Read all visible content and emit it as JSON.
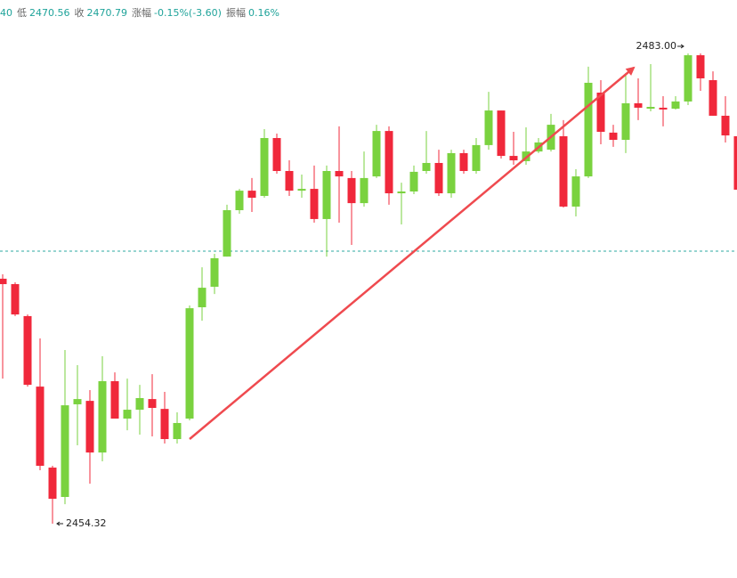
{
  "header": {
    "lead": "40",
    "items": [
      {
        "label": "低",
        "value": "2470.56"
      },
      {
        "label": "收",
        "value": "2470.79"
      },
      {
        "label": "涨幅",
        "value": "-0.15%(-3.60)"
      },
      {
        "label": "振幅",
        "value": "0.16%"
      }
    ]
  },
  "chart_data": {
    "type": "candlestick",
    "up_color": "#7ad23f",
    "down_color": "#f0283b",
    "reference_line": 2470.94,
    "reference_color": "#2ea8a0",
    "annotations": [
      {
        "text": "2483.00",
        "value": 2483.0,
        "candle": 55
      },
      {
        "text": "2454.32",
        "value": 2454.32,
        "candle": 4
      }
    ],
    "candles": [
      [
        2469.26,
        2469.53,
        2463.17,
        2468.93
      ],
      [
        2468.93,
        2469.04,
        2466.98,
        2467.08
      ],
      [
        2466.98,
        2467.08,
        2462.68,
        2462.79
      ],
      [
        2462.68,
        2465.62,
        2457.58,
        2457.85
      ],
      [
        2457.74,
        2457.85,
        2454.32,
        2455.84
      ],
      [
        2455.95,
        2464.91,
        2455.51,
        2461.54
      ],
      [
        2461.6,
        2463.99,
        2459.1,
        2461.92
      ],
      [
        2461.81,
        2462.47,
        2456.76,
        2458.66
      ],
      [
        2458.66,
        2464.53,
        2458.12,
        2463.01
      ],
      [
        2463.01,
        2463.55,
        2460.73,
        2460.73
      ],
      [
        2460.73,
        2463.17,
        2460.02,
        2461.27
      ],
      [
        2461.27,
        2462.79,
        2459.75,
        2461.98
      ],
      [
        2461.92,
        2463.44,
        2459.64,
        2461.38
      ],
      [
        2461.32,
        2462.36,
        2459.21,
        2459.48
      ],
      [
        2459.48,
        2461.11,
        2459.21,
        2460.46
      ],
      [
        2460.73,
        2467.63,
        2460.62,
        2467.46
      ],
      [
        2467.52,
        2469.96,
        2466.7,
        2468.71
      ],
      [
        2468.77,
        2470.78,
        2468.33,
        2470.51
      ],
      [
        2470.61,
        2473.77,
        2470.61,
        2473.44
      ],
      [
        2473.44,
        2474.74,
        2473.22,
        2474.63
      ],
      [
        2474.63,
        2475.4,
        2473.33,
        2474.2
      ],
      [
        2474.31,
        2478.38,
        2474.2,
        2477.84
      ],
      [
        2477.84,
        2478.11,
        2475.67,
        2475.83
      ],
      [
        2475.83,
        2476.48,
        2474.31,
        2474.63
      ],
      [
        2474.63,
        2475.61,
        2474.2,
        2474.74
      ],
      [
        2474.74,
        2476.16,
        2472.68,
        2472.9
      ],
      [
        2472.9,
        2476.16,
        2470.61,
        2475.83
      ],
      [
        2475.83,
        2478.55,
        2472.68,
        2475.5
      ],
      [
        2475.4,
        2475.83,
        2471.32,
        2473.87
      ],
      [
        2473.87,
        2477.02,
        2473.66,
        2475.4
      ],
      [
        2475.5,
        2478.65,
        2475.4,
        2478.27
      ],
      [
        2478.27,
        2478.55,
        2473.77,
        2474.47
      ],
      [
        2474.47,
        2475.12,
        2472.57,
        2474.58
      ],
      [
        2474.58,
        2476.16,
        2474.42,
        2475.78
      ],
      [
        2475.83,
        2478.27,
        2475.67,
        2476.32
      ],
      [
        2476.32,
        2477.13,
        2474.31,
        2474.47
      ],
      [
        2474.47,
        2477.13,
        2474.2,
        2476.92
      ],
      [
        2476.92,
        2477.13,
        2475.67,
        2475.83
      ],
      [
        2475.83,
        2477.84,
        2475.67,
        2477.41
      ],
      [
        2477.41,
        2480.66,
        2477.13,
        2479.52
      ],
      [
        2479.52,
        2479.52,
        2476.59,
        2476.75
      ],
      [
        2476.75,
        2478.22,
        2476.21,
        2476.48
      ],
      [
        2476.43,
        2478.49,
        2476.21,
        2477.02
      ],
      [
        2477.02,
        2477.84,
        2476.92,
        2477.57
      ],
      [
        2477.13,
        2479.31,
        2477.02,
        2478.65
      ],
      [
        2477.95,
        2478.93,
        2473.6,
        2473.66
      ],
      [
        2473.66,
        2475.94,
        2473.06,
        2475.5
      ],
      [
        2475.5,
        2482.19,
        2475.4,
        2481.21
      ],
      [
        2480.61,
        2481.37,
        2477.46,
        2478.22
      ],
      [
        2478.17,
        2478.65,
        2477.3,
        2477.73
      ],
      [
        2477.73,
        2481.8,
        2476.92,
        2479.96
      ],
      [
        2479.96,
        2481.48,
        2478.93,
        2479.69
      ],
      [
        2479.63,
        2482.35,
        2479.47,
        2479.74
      ],
      [
        2479.69,
        2480.39,
        2478.55,
        2479.58
      ],
      [
        2479.63,
        2480.39,
        2479.58,
        2480.07
      ],
      [
        2480.07,
        2483.0,
        2479.85,
        2482.89
      ],
      [
        2482.89,
        2483.0,
        2480.72,
        2481.48
      ],
      [
        2481.37,
        2481.91,
        2479.2,
        2479.2
      ],
      [
        2479.2,
        2480.39,
        2477.57,
        2478.0
      ],
      [
        2477.95,
        2478.11,
        2474.69,
        2474.69
      ]
    ]
  }
}
